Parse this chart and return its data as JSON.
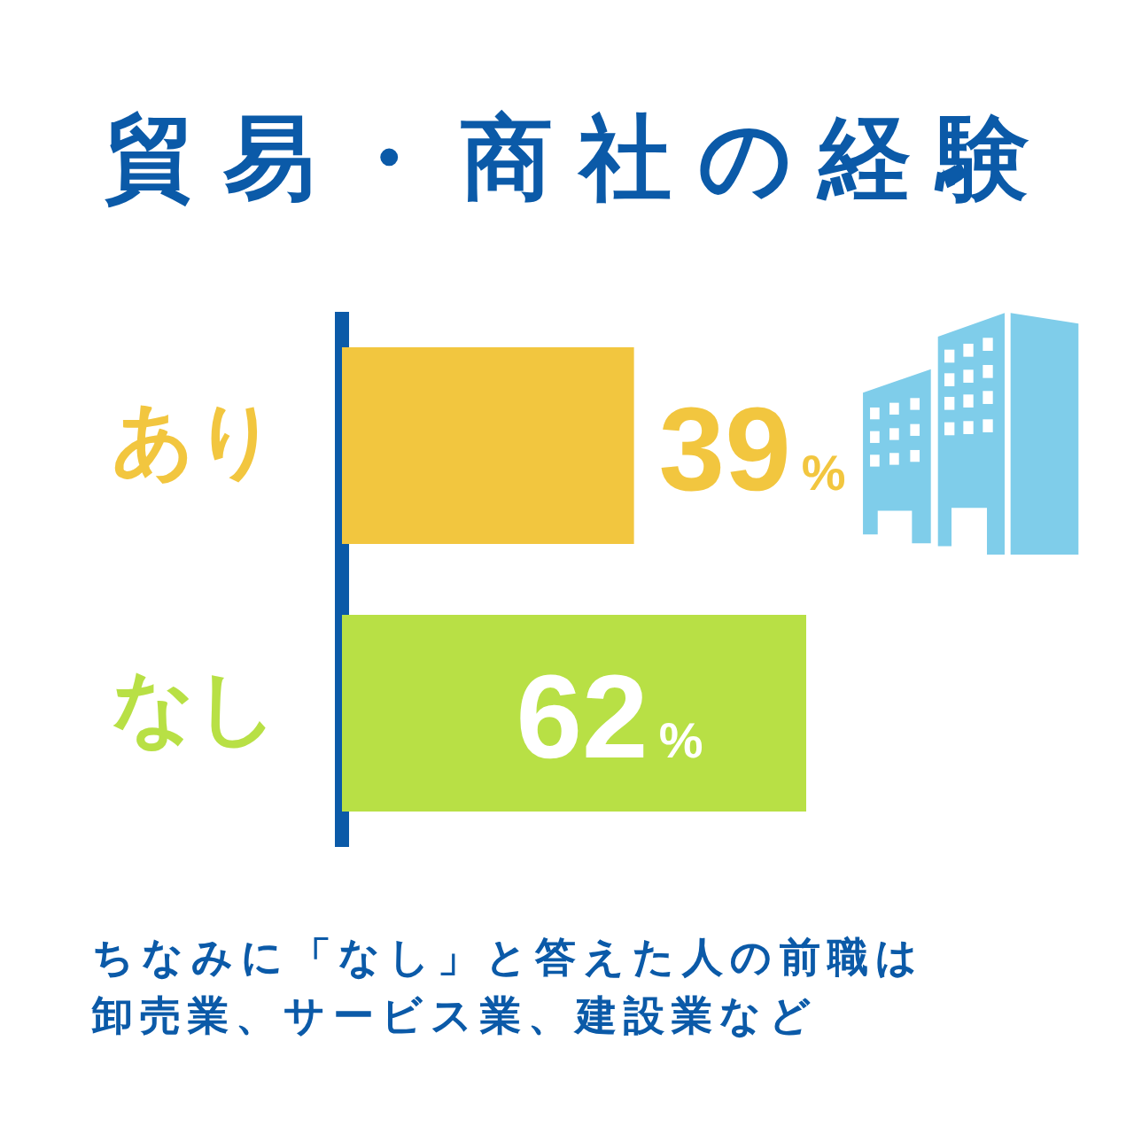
{
  "chart_data": {
    "type": "bar",
    "orientation": "horizontal",
    "title": "貿易・商社の経験",
    "categories": [
      "あり",
      "なし"
    ],
    "values": [
      39,
      62
    ],
    "colors": [
      "#f2c63f",
      "#b8e045"
    ],
    "value_labels": [
      "39%",
      "62%"
    ],
    "tick_labels": "y",
    "annotations": [
      "ちなみに「なし」と答えた人の前職は卸売業、サービス業、建設業など"
    ]
  }
}
